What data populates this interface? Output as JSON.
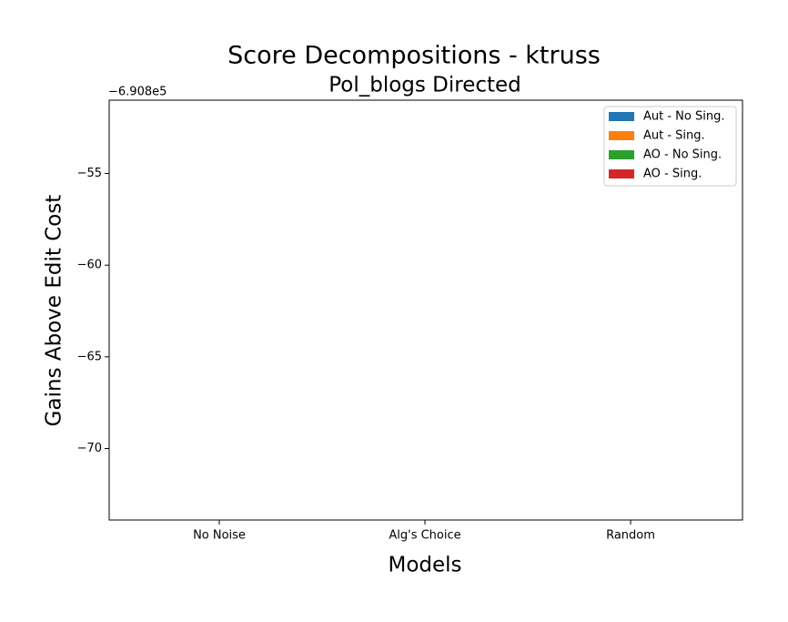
{
  "chart_data": {
    "type": "bar",
    "title": "Score Decompositions - ktruss",
    "subtitle": "Pol_blogs Directed",
    "xlabel": "Models",
    "ylabel": "Gains Above Edit Cost",
    "y_offset_label": "−6.908e5",
    "categories": [
      "No Noise",
      "Alg's Choice",
      "Random"
    ],
    "series": [
      {
        "name": "Aut - No Sing.",
        "color": "#1f77b4",
        "values": [
          null,
          null,
          null
        ]
      },
      {
        "name": "Aut - Sing.",
        "color": "#ff7f0e",
        "values": [
          null,
          null,
          null
        ]
      },
      {
        "name": "AO - No Sing.",
        "color": "#2ca02c",
        "values": [
          null,
          null,
          null
        ]
      },
      {
        "name": "AO - Sing.",
        "color": "#d62728",
        "values": [
          null,
          null,
          null
        ]
      }
    ],
    "ylim": [
      -73.9,
      -51.0
    ],
    "yticks": [
      {
        "value": -70,
        "label": "−70"
      },
      {
        "value": -65,
        "label": "−65"
      },
      {
        "value": -60,
        "label": "−60"
      },
      {
        "value": -55,
        "label": "−55"
      }
    ],
    "legend": "upper right"
  }
}
